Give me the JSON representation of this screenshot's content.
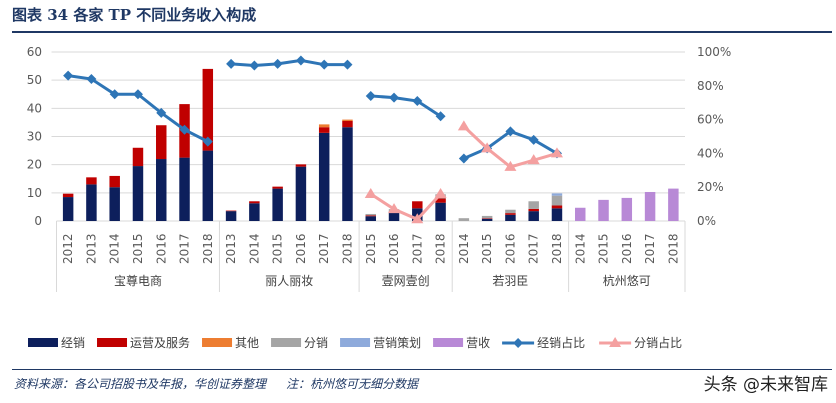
{
  "header": {
    "title": "图表 34   各家 TP 不同业务收入构成"
  },
  "footer": {
    "source": "资料来源：各公司招股书及年报，华创证券整理",
    "note": "注：杭州悠可无细分数据",
    "watermark": "头条 @未来智库"
  },
  "chart_data": {
    "type": "bar",
    "stacked": true,
    "title": "",
    "left_axis": {
      "ylim": [
        0,
        60
      ],
      "ticks": [
        "0",
        "10",
        "20",
        "30",
        "40",
        "50",
        "60"
      ]
    },
    "right_axis": {
      "ylim": [
        0,
        100
      ],
      "ticks": [
        "0%",
        "20%",
        "40%",
        "60%",
        "80%",
        "100%"
      ]
    },
    "grid": true,
    "legend_position": "bottom",
    "groups": [
      {
        "name": "宝尊电商",
        "years": [
          "2012",
          "2013",
          "2014",
          "2015",
          "2016",
          "2017",
          "2018"
        ]
      },
      {
        "name": "丽人丽妆",
        "years": [
          "2013",
          "2014",
          "2015",
          "2016",
          "2017",
          "2018"
        ]
      },
      {
        "name": "壹网壹创",
        "years": [
          "2015",
          "2016",
          "2017",
          "2018"
        ]
      },
      {
        "name": "若羽臣",
        "years": [
          "2014",
          "2015",
          "2016",
          "2017",
          "2018"
        ]
      },
      {
        "name": "杭州悠可",
        "years": [
          "2014",
          "2015",
          "2016",
          "2017",
          "2018"
        ]
      }
    ],
    "bar_series": [
      {
        "name": "经销",
        "color": "#0d1f5c",
        "values": [
          8.5,
          13,
          12,
          19.5,
          22,
          22.5,
          25,
          3.5,
          6.3,
          11.5,
          19.3,
          31.3,
          33.3,
          1.7,
          3,
          4.5,
          6.5,
          0,
          0.8,
          2.2,
          3.5,
          4.5,
          0,
          0,
          0,
          0,
          0
        ]
      },
      {
        "name": "运营及服务",
        "color": "#c00000",
        "values": [
          1.2,
          2.5,
          4,
          6.5,
          12,
          19,
          29,
          0.2,
          0.7,
          0.7,
          0.8,
          2,
          2.2,
          0.3,
          0.4,
          2.5,
          1.5,
          0,
          0.2,
          0.6,
          0.8,
          1,
          0,
          0,
          0,
          0,
          0
        ]
      },
      {
        "name": "其他",
        "color": "#ed7d31",
        "values": [
          0,
          0,
          0,
          0,
          0,
          0,
          0,
          0,
          0,
          0,
          0,
          1,
          0.5,
          0,
          0,
          0,
          0,
          0,
          0,
          0,
          0,
          0,
          0,
          0,
          0,
          0,
          0
        ]
      },
      {
        "name": "分销",
        "color": "#a5a5a5",
        "values": [
          0,
          0,
          0,
          0,
          0,
          0,
          0,
          0,
          0,
          0,
          0,
          0,
          0,
          0.5,
          0.8,
          0,
          1.5,
          1,
          0.8,
          1.2,
          2.7,
          3.5,
          0,
          0,
          0,
          0,
          0
        ]
      },
      {
        "name": "营销策划",
        "color": "#8eaadb",
        "values": [
          0,
          0,
          0,
          0,
          0,
          0,
          0,
          0,
          0,
          0,
          0,
          0,
          0,
          0,
          0,
          0,
          0,
          0,
          0,
          0,
          0,
          0.8,
          0,
          0,
          0,
          0,
          0
        ]
      },
      {
        "name": "营收",
        "color": "#b889d6",
        "values": [
          0,
          0,
          0,
          0,
          0,
          0,
          0,
          0,
          0,
          0,
          0,
          0,
          0,
          0,
          0,
          0,
          0,
          0,
          0,
          0,
          0,
          0,
          4.7,
          7.5,
          8.2,
          10.3,
          11.5
        ]
      }
    ],
    "line_series": [
      {
        "name": "经销占比",
        "color": "#2e75b6",
        "marker": "diamond",
        "segments": [
          {
            "group": 0,
            "values": [
              86,
              84,
              75,
              75,
              64,
              54,
              47
            ]
          },
          {
            "group": 1,
            "values": [
              93,
              92,
              93,
              95,
              92.5,
              92.5
            ]
          },
          {
            "group": 2,
            "values": [
              74,
              73,
              71,
              62
            ]
          },
          {
            "group": 3,
            "values": [
              37,
              43,
              53,
              48,
              40
            ]
          }
        ]
      },
      {
        "name": "分销占比",
        "color": "#f4a0a0",
        "marker": "triangle",
        "segments": [
          {
            "group": 2,
            "values": [
              16,
              7,
              1,
              16
            ]
          },
          {
            "group": 3,
            "values": [
              56,
              43,
              32,
              36,
              40
            ]
          }
        ]
      }
    ]
  }
}
